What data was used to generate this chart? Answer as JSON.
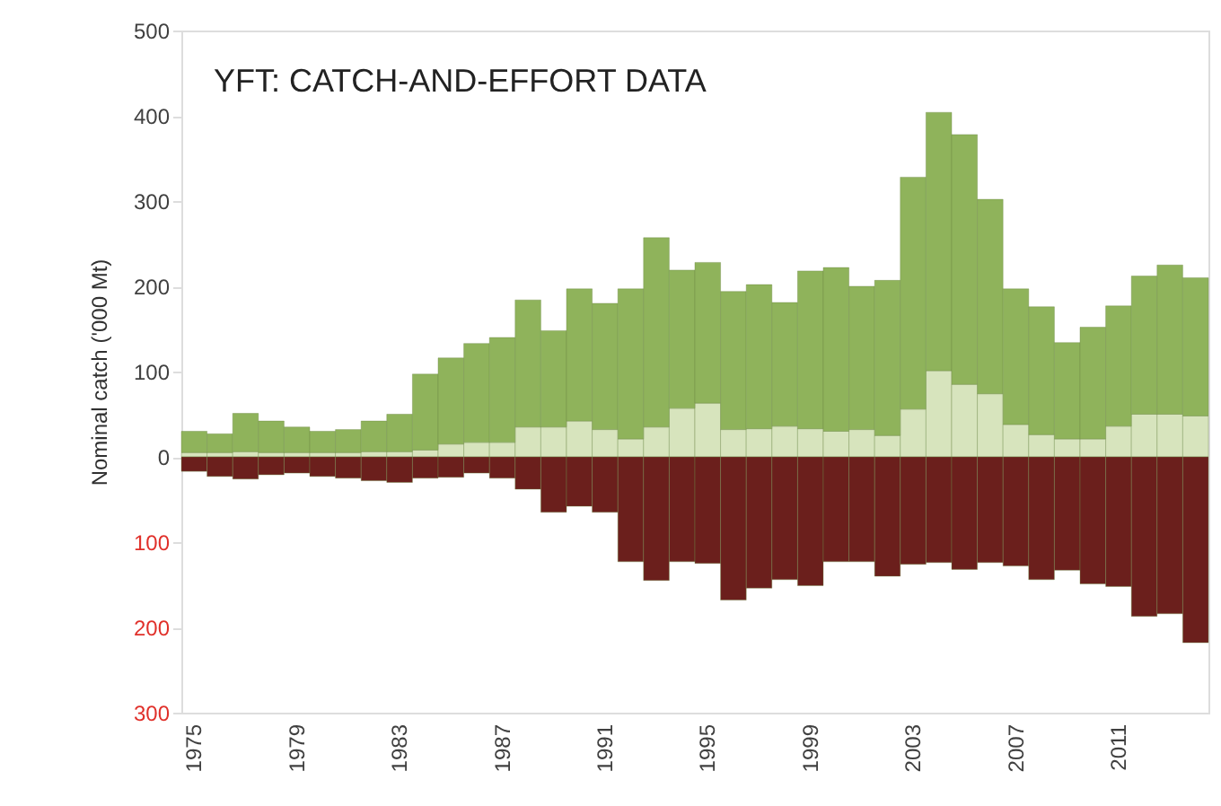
{
  "chart_data": {
    "type": "bar",
    "title": "YFT: CATCH-AND-EFFORT DATA",
    "ylabel": "Nominal catch ('000 Mt)",
    "categories": [
      "1975",
      null,
      null,
      null,
      "1979",
      null,
      null,
      null,
      "1983",
      null,
      null,
      null,
      "1987",
      null,
      null,
      null,
      "1991",
      null,
      null,
      null,
      "1995",
      null,
      null,
      null,
      "1999",
      null,
      null,
      null,
      "2003",
      null,
      null,
      null,
      "2007",
      null,
      null,
      null,
      "2011",
      null,
      null,
      null
    ],
    "stacked": true,
    "series": [
      {
        "color": "#d7e4bd",
        "values": [
          5,
          5,
          6,
          5,
          5,
          5,
          5,
          6,
          6,
          8,
          15,
          17,
          17,
          35,
          35,
          42,
          32,
          21,
          35,
          57,
          63,
          32,
          33,
          36,
          33,
          30,
          32,
          25,
          56,
          101,
          85,
          74,
          38,
          26,
          21,
          21,
          36,
          50,
          50,
          48
        ]
      },
      {
        "color": "#8fb35b",
        "values": [
          25,
          22,
          45,
          37,
          30,
          25,
          27,
          36,
          44,
          89,
          101,
          116,
          123,
          149,
          113,
          155,
          148,
          176,
          222,
          162,
          165,
          162,
          169,
          145,
          185,
          192,
          168,
          182,
          272,
          303,
          293,
          228,
          159,
          150,
          113,
          131,
          141,
          162,
          175,
          162
        ]
      },
      {
        "color": "#6b1f1c",
        "values": [
          -17,
          -23,
          -26,
          -21,
          -19,
          -23,
          -25,
          -28,
          -30,
          -25,
          -24,
          -19,
          -25,
          -38,
          -65,
          -58,
          -65,
          -123,
          -145,
          -123,
          -125,
          -168,
          -154,
          -144,
          -151,
          -123,
          -123,
          -140,
          -126,
          -124,
          -132,
          -124,
          -128,
          -144,
          -133,
          -149,
          -152,
          -187,
          -184,
          -218
        ]
      }
    ],
    "ylim": [
      -300,
      500
    ],
    "yticks": [
      500,
      400,
      300,
      200,
      100,
      0,
      {
        "value": -100,
        "label": "100"
      },
      {
        "value": -200,
        "label": "200"
      },
      {
        "value": -300,
        "label": "300"
      }
    ],
    "grid": false
  }
}
